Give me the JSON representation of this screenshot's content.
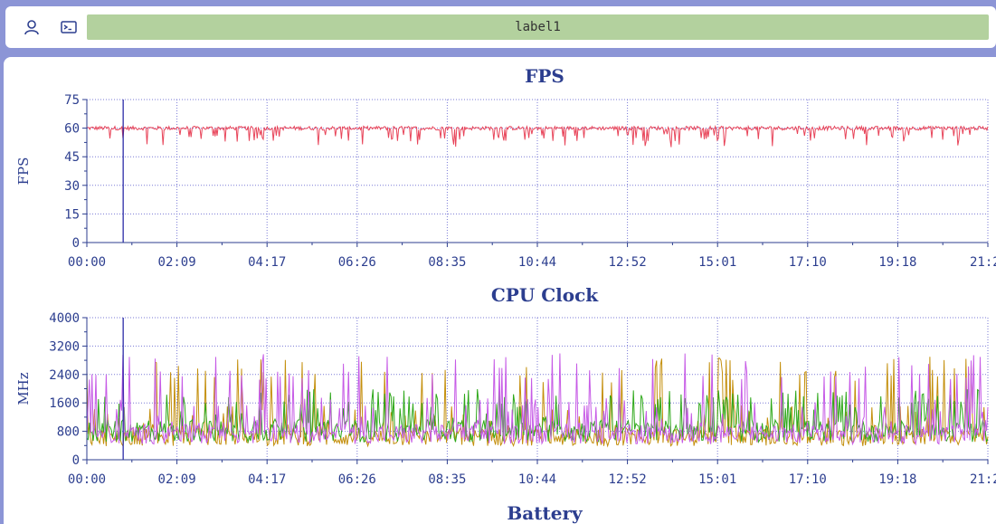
{
  "toolbar": {
    "user_icon": "user-icon",
    "terminal_icon": "terminal-icon",
    "label": "label1",
    "label_color": "#b3d19e"
  },
  "colors": {
    "axis": "#2c3e8f",
    "grid": "#7a7ad6",
    "fps_line": "#e8455a",
    "cursor": "#1a1aa0",
    "cpu_series": [
      "#c48f0c",
      "#2ea81a",
      "#c65ae6"
    ]
  },
  "chart_data": [
    {
      "type": "line",
      "title": "FPS",
      "xlabel": "",
      "ylabel": "FPS",
      "ylim": [
        0,
        75
      ],
      "yticks": [
        "0",
        "15",
        "30",
        "45",
        "60",
        "75"
      ],
      "xticks": [
        "00:00",
        "02:09",
        "04:17",
        "06:26",
        "08:35",
        "10:44",
        "12:52",
        "15:01",
        "17:10",
        "19:18",
        "21:2"
      ],
      "grid": true,
      "cursor_x": "00:52",
      "series": [
        {
          "color": "#e8455a",
          "typical": 59,
          "min": 50,
          "max": 61
        }
      ]
    },
    {
      "type": "line",
      "title": "CPU Clock",
      "xlabel": "",
      "ylabel": "MHz",
      "ylim": [
        0,
        4000
      ],
      "yticks": [
        "0",
        "800",
        "1600",
        "2400",
        "3200",
        "4000"
      ],
      "xticks": [
        "00:00",
        "02:09",
        "04:17",
        "06:26",
        "08:35",
        "10:44",
        "12:52",
        "15:01",
        "17:10",
        "19:18",
        "21:2"
      ],
      "grid": true,
      "cursor_x": "00:52",
      "series": [
        {
          "color": "#c48f0c",
          "typical": 700,
          "max": 2900
        },
        {
          "color": "#2ea81a",
          "typical": 900,
          "max": 2000
        },
        {
          "color": "#c65ae6",
          "typical": 800,
          "max": 3000
        }
      ]
    },
    {
      "type": "line",
      "title": "Battery"
    }
  ]
}
